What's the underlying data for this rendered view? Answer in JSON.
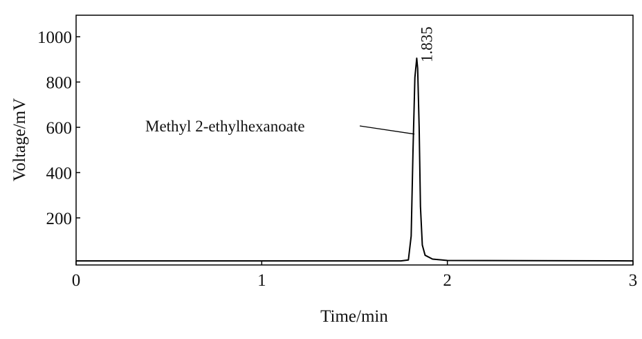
{
  "chart_data": {
    "type": "line",
    "x_label": "Time/min",
    "y_label": "Voltage/mV",
    "xlim": [
      0,
      3
    ],
    "ylim": [
      -8,
      1095
    ],
    "xticks": [
      0,
      1,
      2,
      3
    ],
    "yticks": [
      200,
      400,
      600,
      800,
      1000
    ],
    "grid": false,
    "series": [
      {
        "name": "Methyl 2-ethylhexanoate",
        "color": "#000000",
        "x": [
          0,
          1.75,
          1.79,
          1.805,
          1.815,
          1.825,
          1.835,
          1.84,
          1.848,
          1.855,
          1.865,
          1.88,
          1.92,
          2.0,
          3
        ],
        "values": [
          10,
          10,
          14,
          120,
          500,
          820,
          905,
          860,
          600,
          250,
          80,
          35,
          18,
          12,
          10
        ]
      }
    ],
    "annotations": [
      {
        "text": "Methyl 2-ethylhexanoate",
        "x": 1.83,
        "y": 570
      },
      {
        "text": "1.835",
        "x": 1.835,
        "y": 905
      }
    ]
  }
}
